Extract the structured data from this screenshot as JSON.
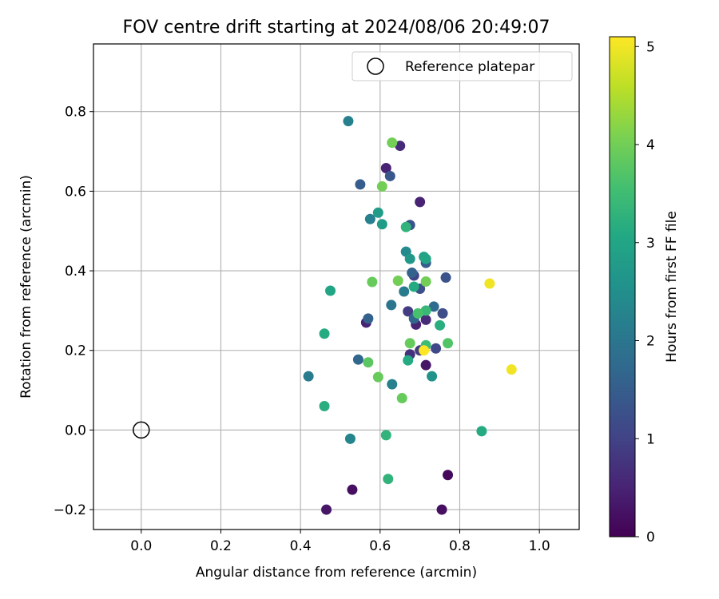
{
  "chart_data": {
    "type": "scatter",
    "title": "FOV centre drift starting at 2024/08/06 20:49:07",
    "xlabel": "Angular distance from reference (arcmin)",
    "ylabel": "Rotation from reference (arcmin)",
    "xlim": [
      -0.12,
      1.1
    ],
    "ylim": [
      -0.25,
      0.97
    ],
    "xticks": [
      0.0,
      0.2,
      0.4,
      0.6,
      0.8,
      1.0
    ],
    "xtick_labels": [
      "0.0",
      "0.2",
      "0.4",
      "0.6",
      "0.8",
      "1.0"
    ],
    "yticks": [
      -0.2,
      0.0,
      0.2,
      0.4,
      0.6,
      0.8
    ],
    "ytick_labels": [
      "−0.2",
      "0.0",
      "0.2",
      "0.4",
      "0.6",
      "0.8"
    ],
    "grid": true,
    "legend": {
      "placement": "top-right",
      "label": "Reference platepar"
    },
    "reference_point": {
      "x": 0.0,
      "y": 0.0
    },
    "colorbar": {
      "label": "Hours from first FF file",
      "colormap": "viridis",
      "range": [
        0,
        5.1
      ],
      "ticks": [
        0,
        1,
        2,
        3,
        4,
        5
      ],
      "tick_labels": [
        "0",
        "1",
        "2",
        "3",
        "4",
        "5"
      ]
    },
    "points": [
      {
        "x": 0.755,
        "y": -0.2,
        "c": 0.2
      },
      {
        "x": 0.465,
        "y": -0.2,
        "c": 0.3
      },
      {
        "x": 0.53,
        "y": -0.15,
        "c": 0.2
      },
      {
        "x": 0.77,
        "y": -0.113,
        "c": 0.1
      },
      {
        "x": 0.715,
        "y": 0.163,
        "c": 0.3
      },
      {
        "x": 0.565,
        "y": 0.27,
        "c": 0.5
      },
      {
        "x": 0.69,
        "y": 0.265,
        "c": 0.5
      },
      {
        "x": 0.715,
        "y": 0.277,
        "c": 0.6
      },
      {
        "x": 0.675,
        "y": 0.19,
        "c": 0.7
      },
      {
        "x": 0.7,
        "y": 0.573,
        "c": 0.5
      },
      {
        "x": 0.615,
        "y": 0.658,
        "c": 0.5
      },
      {
        "x": 0.65,
        "y": 0.714,
        "c": 0.6
      },
      {
        "x": 0.7,
        "y": 0.2,
        "c": 0.9
      },
      {
        "x": 0.67,
        "y": 0.298,
        "c": 0.9
      },
      {
        "x": 0.685,
        "y": 0.388,
        "c": 1.0
      },
      {
        "x": 0.74,
        "y": 0.205,
        "c": 1.1
      },
      {
        "x": 0.757,
        "y": 0.293,
        "c": 1.2
      },
      {
        "x": 0.765,
        "y": 0.383,
        "c": 1.3
      },
      {
        "x": 0.7,
        "y": 0.355,
        "c": 1.2
      },
      {
        "x": 0.675,
        "y": 0.515,
        "c": 1.3
      },
      {
        "x": 0.625,
        "y": 0.638,
        "c": 1.4
      },
      {
        "x": 0.55,
        "y": 0.617,
        "c": 1.5
      },
      {
        "x": 0.715,
        "y": 0.42,
        "c": 1.5
      },
      {
        "x": 0.685,
        "y": 0.28,
        "c": 1.7
      },
      {
        "x": 0.57,
        "y": 0.28,
        "c": 1.6
      },
      {
        "x": 0.545,
        "y": 0.177,
        "c": 1.7
      },
      {
        "x": 0.735,
        "y": 0.31,
        "c": 1.8
      },
      {
        "x": 0.68,
        "y": 0.395,
        "c": 1.6
      },
      {
        "x": 0.628,
        "y": 0.314,
        "c": 2.0
      },
      {
        "x": 0.66,
        "y": 0.348,
        "c": 2.1
      },
      {
        "x": 0.575,
        "y": 0.53,
        "c": 2.2
      },
      {
        "x": 0.52,
        "y": 0.776,
        "c": 2.2
      },
      {
        "x": 0.42,
        "y": 0.135,
        "c": 2.1
      },
      {
        "x": 0.63,
        "y": 0.115,
        "c": 2.2
      },
      {
        "x": 0.525,
        "y": -0.022,
        "c": 2.3
      },
      {
        "x": 0.665,
        "y": 0.448,
        "c": 2.4
      },
      {
        "x": 0.73,
        "y": 0.135,
        "c": 2.6
      },
      {
        "x": 0.675,
        "y": 0.43,
        "c": 2.7
      },
      {
        "x": 0.595,
        "y": 0.546,
        "c": 2.8
      },
      {
        "x": 0.605,
        "y": 0.517,
        "c": 2.8
      },
      {
        "x": 0.71,
        "y": 0.435,
        "c": 2.9
      },
      {
        "x": 0.715,
        "y": 0.43,
        "c": 3.0
      },
      {
        "x": 0.685,
        "y": 0.36,
        "c": 3.1
      },
      {
        "x": 0.475,
        "y": 0.35,
        "c": 3.0
      },
      {
        "x": 0.67,
        "y": 0.175,
        "c": 3.1
      },
      {
        "x": 0.75,
        "y": 0.263,
        "c": 3.2
      },
      {
        "x": 0.46,
        "y": 0.242,
        "c": 3.1
      },
      {
        "x": 0.46,
        "y": 0.06,
        "c": 3.2
      },
      {
        "x": 0.615,
        "y": -0.013,
        "c": 3.3
      },
      {
        "x": 0.62,
        "y": -0.123,
        "c": 3.3
      },
      {
        "x": 0.855,
        "y": -0.003,
        "c": 3.1
      },
      {
        "x": 0.665,
        "y": 0.51,
        "c": 3.3
      },
      {
        "x": 0.715,
        "y": 0.3,
        "c": 3.4
      },
      {
        "x": 0.715,
        "y": 0.213,
        "c": 3.5
      },
      {
        "x": 0.695,
        "y": 0.293,
        "c": 3.6
      },
      {
        "x": 0.57,
        "y": 0.17,
        "c": 3.8
      },
      {
        "x": 0.595,
        "y": 0.133,
        "c": 3.9
      },
      {
        "x": 0.655,
        "y": 0.08,
        "c": 3.9
      },
      {
        "x": 0.675,
        "y": 0.218,
        "c": 3.9
      },
      {
        "x": 0.77,
        "y": 0.218,
        "c": 3.7
      },
      {
        "x": 0.58,
        "y": 0.372,
        "c": 3.9
      },
      {
        "x": 0.645,
        "y": 0.375,
        "c": 4.0
      },
      {
        "x": 0.715,
        "y": 0.373,
        "c": 4.0
      },
      {
        "x": 0.605,
        "y": 0.612,
        "c": 4.0
      },
      {
        "x": 0.63,
        "y": 0.722,
        "c": 4.0
      },
      {
        "x": 0.875,
        "y": 0.368,
        "c": 5.0
      },
      {
        "x": 0.93,
        "y": 0.152,
        "c": 5.0
      },
      {
        "x": 0.71,
        "y": 0.2,
        "c": 5.1
      }
    ]
  }
}
